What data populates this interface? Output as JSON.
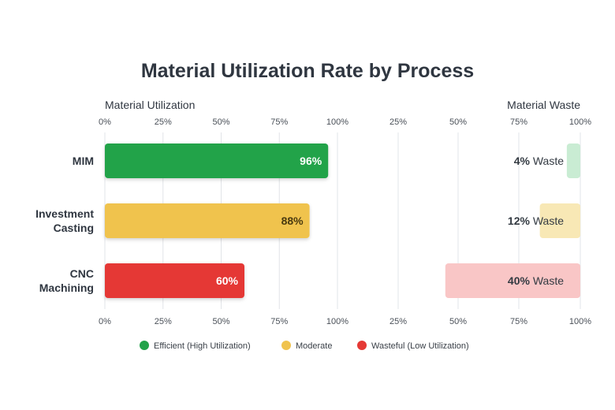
{
  "chart_data": {
    "type": "bar",
    "orientation": "horizontal",
    "title": "Material Utilization Rate by Process",
    "left_axis_label": "Material Utilization",
    "right_axis_label": "Material Waste",
    "xlim": [
      0,
      100
    ],
    "ticks": [
      "0%",
      "25%",
      "50%",
      "75%",
      "100%"
    ],
    "right_ticks": [
      "25%",
      "50%",
      "75%",
      "100%"
    ],
    "grid": true,
    "categories": [
      {
        "lines": [
          "MIM"
        ]
      },
      {
        "lines": [
          "Investment",
          "Casting"
        ]
      },
      {
        "lines": [
          "CNC",
          "Machining"
        ]
      }
    ],
    "utilization": [
      {
        "value": 96,
        "label": "96%",
        "class": "efficient",
        "color": "#22a34a",
        "text_color": "#ffffff"
      },
      {
        "value": 88,
        "label": "88%",
        "class": "moderate",
        "color": "#f0c34e",
        "text_color": "#4a3a10"
      },
      {
        "value": 60,
        "label": "60%",
        "class": "wasteful",
        "color": "#e53935",
        "text_color": "#ffffff"
      }
    ],
    "waste": [
      {
        "value": 4,
        "num": "4%",
        "word": " Waste",
        "color": "#c9ecd3"
      },
      {
        "value": 12,
        "num": "12%",
        "word": " Waste",
        "color": "#f8e8b5"
      },
      {
        "value": 40,
        "num": "40%",
        "word": " Waste",
        "color": "#f9c6c6"
      }
    ],
    "legend_position": "bottom",
    "legend": [
      {
        "label": "Efficient (High Utilization)",
        "color": "#22a34a"
      },
      {
        "label": "Moderate",
        "color": "#f0c34e"
      },
      {
        "label": "Wasteful (Low Utilization)",
        "color": "#e53935"
      }
    ]
  }
}
